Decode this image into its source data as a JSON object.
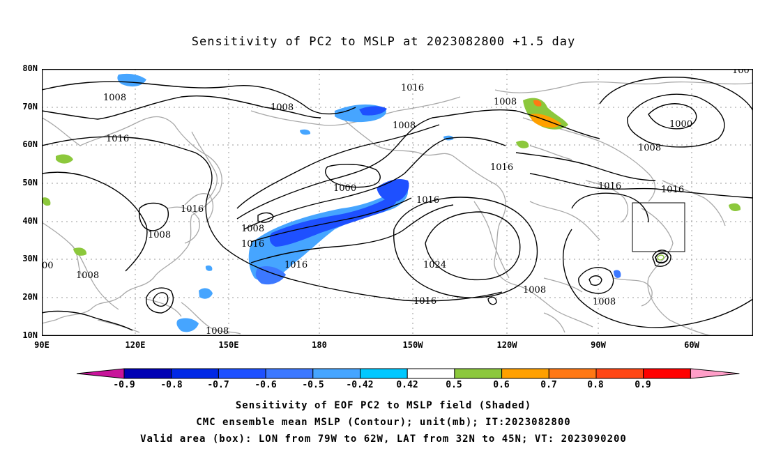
{
  "title": "Sensitivity of PC2 to MSLP at 2023082800 +1.5 day",
  "lat_labels": [
    "80N",
    "70N",
    "60N",
    "50N",
    "40N",
    "30N",
    "20N",
    "10N"
  ],
  "lon_labels": [
    "90E",
    "120E",
    "150E",
    "180",
    "150W",
    "120W",
    "90W",
    "60W"
  ],
  "contour_labels": [
    "1008",
    "1008",
    "1016",
    "1008",
    "1016",
    "1008",
    "1000",
    "1016",
    "1000",
    "1016",
    "1016",
    "1016",
    "1008",
    "1016",
    "1024",
    "1008",
    "1008",
    "1016",
    "1008",
    "1008",
    "1016",
    "1016",
    "1008",
    "00",
    "100"
  ],
  "colorbar": {
    "labels": [
      "-0.9",
      "-0.8",
      "-0.7",
      "-0.6",
      "-0.5",
      "-0.42",
      "0.42",
      "0.5",
      "0.6",
      "0.7",
      "0.8",
      "0.9"
    ],
    "colors": [
      "#c8139a",
      "#0000b4",
      "#0028e6",
      "#1e50ff",
      "#3c78ff",
      "#46a5ff",
      "#00c8ff",
      "#ffffff",
      "#8cc83c",
      "#ffa000",
      "#ff7814",
      "#ff4614",
      "#ff0000",
      "#ff9ec8"
    ]
  },
  "captions": [
    "Sensitivity of EOF PC2 to MSLP field (Shaded)",
    "CMC ensemble mean MSLP (Contour); unit(mb); IT:2023082800",
    "Valid area (box): LON from 79W to 62W, LAT from 32N to 45N; VT: 2023090200"
  ]
}
